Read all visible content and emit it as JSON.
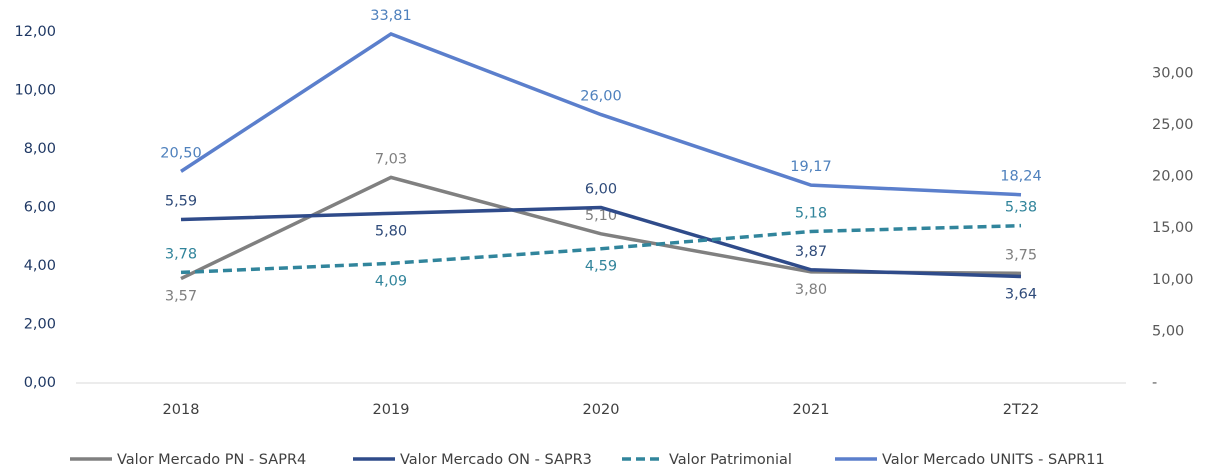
{
  "chart_data": {
    "type": "line",
    "categories": [
      "2018",
      "2019",
      "2020",
      "2021",
      "2T22"
    ],
    "ylim": [
      0,
      12
    ],
    "yticks": [
      {
        "value": 0,
        "label": "0,00"
      },
      {
        "value": 2,
        "label": "2,00"
      },
      {
        "value": 4,
        "label": "4,00"
      },
      {
        "value": 6,
        "label": "6,00"
      },
      {
        "value": 8,
        "label": "8,00"
      },
      {
        "value": 10,
        "label": "10,00"
      },
      {
        "value": 12,
        "label": "12,00"
      }
    ],
    "y2lim": [
      0,
      34
    ],
    "y2ticks": [
      {
        "value": 0,
        "label": "-"
      },
      {
        "value": 5,
        "label": "5,00"
      },
      {
        "value": 10,
        "label": "10,00"
      },
      {
        "value": 15,
        "label": "15,00"
      },
      {
        "value": 20,
        "label": "20,00"
      },
      {
        "value": 25,
        "label": "25,00"
      },
      {
        "value": 30,
        "label": "30,00"
      }
    ],
    "legend": "bottom",
    "series": [
      {
        "name": "Valor Mercado PN - SAPR4",
        "color": "#808080",
        "values": [
          3.57,
          7.03,
          5.1,
          3.8,
          3.75
        ],
        "value_labels": [
          "3,57",
          "7,03",
          "5,10",
          "3,80",
          "3,75"
        ]
      },
      {
        "name": "Valor Mercado ON - SAPR3",
        "color": "#2f4b8a",
        "values": [
          5.59,
          5.8,
          6.0,
          3.87,
          3.64
        ],
        "value_labels": [
          "5,59",
          "5,80",
          "6,00",
          "3,87",
          "3,64"
        ]
      },
      {
        "name": "Valor Patrimonial",
        "color": "#31859c",
        "dashed": true,
        "values": [
          3.78,
          4.09,
          4.59,
          5.18,
          5.38
        ],
        "value_labels": [
          "3,78",
          "4,09",
          "4,59",
          "5,18",
          "5,38"
        ]
      },
      {
        "name": "Valor Mercado UNITS - SAPR11",
        "color": "#5b7fcc",
        "axis": "y2",
        "values": [
          20.5,
          33.81,
          26.0,
          19.17,
          18.24
        ],
        "value_labels": [
          "20,50",
          "33,81",
          "26,00",
          "19,17",
          "18,24"
        ]
      }
    ]
  }
}
